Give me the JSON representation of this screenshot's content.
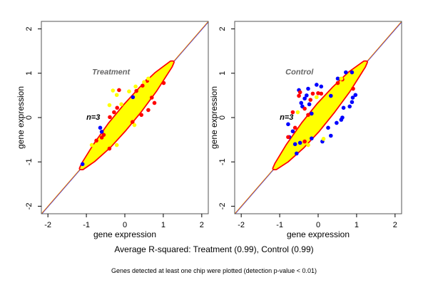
{
  "chart_data": [
    {
      "type": "scatter",
      "title": "Treatment",
      "annotation": "n=3",
      "xlabel": "gene expression",
      "ylabel": "gene expression",
      "xlim": [
        -2.17,
        2.17
      ],
      "ylim": [
        -2.17,
        2.17
      ],
      "xticks": [
        "-2",
        "-1",
        "0",
        "1",
        "2"
      ],
      "yticks": [
        "-2",
        "-1",
        "0",
        "1",
        "2"
      ],
      "grid": false,
      "reference_lines": [
        {
          "equation": "y = x",
          "colors": [
            "#0000ff",
            "#ff8c00"
          ]
        }
      ],
      "dense_band": {
        "color": "#ffff00",
        "edge_color": "#ff0000",
        "x": [
          -1.15,
          -1.1,
          -0.8,
          -0.4,
          0,
          0.4,
          0.8,
          1.2,
          1.25
        ],
        "half_width": [
          0,
          0.05,
          0.17,
          0.26,
          0.28,
          0.26,
          0.19,
          0.05,
          0
        ]
      },
      "series": [
        {
          "color": "#ff0000",
          "points": [
            [
              -0.15,
              0.62
            ],
            [
              -0.2,
              0.22
            ],
            [
              -0.39,
              0.01
            ],
            [
              -0.28,
              0.12
            ],
            [
              0.77,
              0.33
            ],
            [
              0.61,
              0.17
            ],
            [
              0.43,
              0.06
            ],
            [
              -0.55,
              -0.39
            ],
            [
              -0.74,
              -0.52
            ],
            [
              -0.4,
              -0.7
            ],
            [
              0.46,
              0.72
            ],
            [
              0.58,
              0.83
            ],
            [
              1.01,
              0.78
            ],
            [
              0.3,
              0.6
            ],
            [
              0.7,
              0.45
            ],
            [
              -0.6,
              -0.45
            ],
            [
              0.2,
              -0.1
            ]
          ]
        },
        {
          "color": "#0000ff",
          "points": [
            [
              -0.64,
              -0.23
            ],
            [
              -0.6,
              -0.32
            ],
            [
              0.21,
              0.46
            ],
            [
              -1.1,
              -1.05
            ]
          ]
        },
        {
          "color": "#ffff00",
          "points": [
            [
              -0.31,
              0.61
            ],
            [
              -0.21,
              0.51
            ],
            [
              -0.4,
              0.28
            ],
            [
              0.11,
              0.59
            ],
            [
              0.28,
              0.7
            ],
            [
              0.61,
              0.88
            ],
            [
              -0.86,
              -0.62
            ],
            [
              -0.21,
              -0.62
            ],
            [
              0.25,
              -0.17
            ],
            [
              -0.09,
              0.3
            ],
            [
              0.5,
              0.8
            ]
          ]
        }
      ]
    },
    {
      "type": "scatter",
      "title": "Control",
      "annotation": "n=3",
      "xlabel": "gene expression",
      "ylabel": "gene expression",
      "xlim": [
        -2.17,
        2.17
      ],
      "ylim": [
        -2.17,
        2.17
      ],
      "xticks": [
        "-2",
        "-1",
        "0",
        "1",
        "2"
      ],
      "yticks": [
        "-2",
        "-1",
        "0",
        "1",
        "2"
      ],
      "grid": false,
      "reference_lines": [
        {
          "equation": "y = x",
          "colors": [
            "#0000ff",
            "#ff8c00"
          ]
        }
      ],
      "dense_band": {
        "color": "#ffff00",
        "edge_color": "#ff0000",
        "x": [
          -1.15,
          -1.1,
          -0.8,
          -0.4,
          0,
          0.4,
          0.8,
          1.2,
          1.25
        ],
        "half_width": [
          0,
          0.05,
          0.18,
          0.27,
          0.3,
          0.27,
          0.2,
          0.05,
          0
        ]
      },
      "series": [
        {
          "color": "#0000ff",
          "points": [
            [
              -0.04,
              0.74
            ],
            [
              0.08,
              0.7
            ],
            [
              -0.26,
              0.65
            ],
            [
              -0.5,
              0.62
            ],
            [
              -0.35,
              0.43
            ],
            [
              -0.44,
              0.33
            ],
            [
              -0.41,
              0.25
            ],
            [
              -0.78,
              -0.15
            ],
            [
              -0.66,
              -0.31
            ],
            [
              -0.75,
              -0.44
            ],
            [
              -0.47,
              -0.57
            ],
            [
              -0.56,
              -0.81
            ],
            [
              -0.17,
              -0.47
            ],
            [
              0.11,
              -0.54
            ],
            [
              0.33,
              -0.41
            ],
            [
              0.26,
              -0.23
            ],
            [
              0.48,
              -0.12
            ],
            [
              0.63,
              0
            ],
            [
              0.66,
              0.22
            ],
            [
              0.82,
              0.25
            ],
            [
              0.88,
              0.35
            ],
            [
              0.97,
              0.51
            ],
            [
              0.72,
              1.02
            ],
            [
              0.88,
              1.02
            ],
            [
              0.51,
              0.88
            ],
            [
              0.33,
              0.49
            ],
            [
              -0.23,
              0.3
            ],
            [
              -0.17,
              0.09
            ],
            [
              0.6,
              -0.05
            ],
            [
              -0.6,
              -0.6
            ],
            [
              0.9,
              0.45
            ],
            [
              -0.3,
              0.5
            ]
          ]
        },
        {
          "color": "#ff0000",
          "points": [
            [
              -0.5,
              0.49
            ],
            [
              -0.47,
              0.57
            ],
            [
              -0.14,
              0.54
            ],
            [
              0.08,
              0.54
            ],
            [
              -0.66,
              0.12
            ],
            [
              -0.78,
              -0.44
            ],
            [
              -0.6,
              -0.23
            ],
            [
              -0.35,
              -0.54
            ],
            [
              -0.26,
              0.06
            ],
            [
              0.51,
              0.78
            ],
            [
              0.63,
              0.86
            ],
            [
              0.91,
              0.65
            ],
            [
              0.0,
              0.55
            ],
            [
              -0.2,
              0.4
            ],
            [
              -0.35,
              0.2
            ]
          ]
        },
        {
          "color": "#ffff00",
          "points": [
            [
              -0.53,
              0.12
            ],
            [
              0.14,
              -0.48
            ],
            [
              -0.26,
              -0.62
            ],
            [
              0.6,
              0.88
            ],
            [
              -0.04,
              0.46
            ]
          ]
        }
      ]
    }
  ],
  "captions": {
    "summary": "Average R-squared: Treatment (0.99), Control (0.99)",
    "note": "Genes detected at least one chip were plotted (detection p-value < 0.01)"
  }
}
